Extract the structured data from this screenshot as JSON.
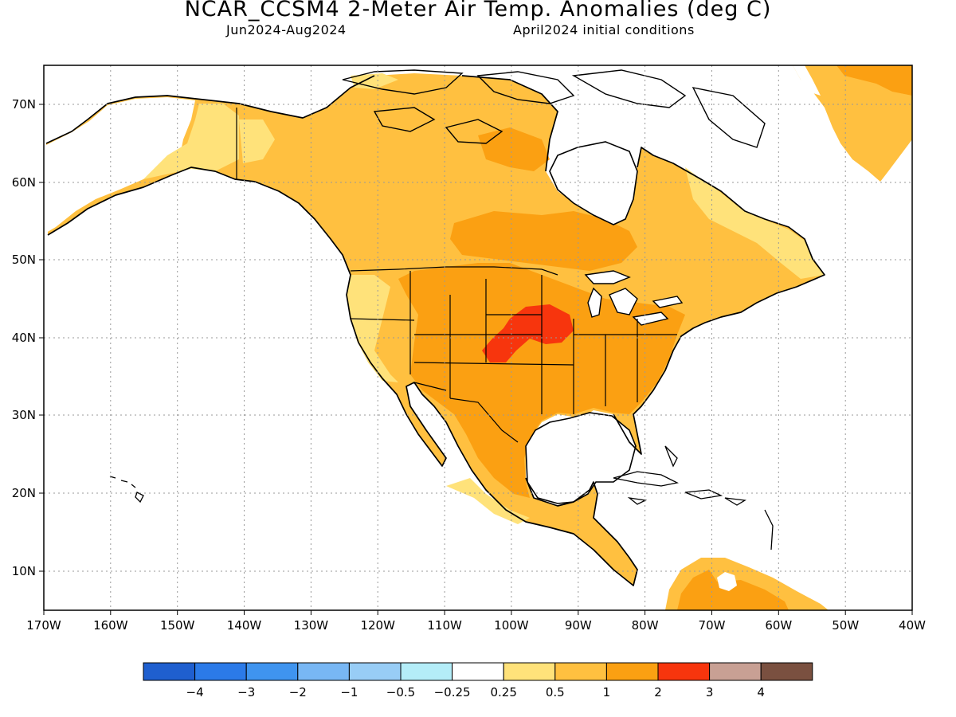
{
  "header": {
    "title": "NCAR_CCSM4 2-Meter Air Temp. Anomalies (deg C)",
    "period": "Jun2024-Aug2024",
    "initial_conditions": "April2024 initial conditions"
  },
  "map": {
    "lon_labels": [
      "170W",
      "160W",
      "150W",
      "140W",
      "130W",
      "120W",
      "110W",
      "100W",
      "90W",
      "80W",
      "70W",
      "60W",
      "50W",
      "40W"
    ],
    "lat_labels": [
      "70N",
      "60N",
      "50N",
      "40N",
      "30N",
      "20N",
      "10N"
    ],
    "lon_range": [
      -170,
      -40
    ],
    "lat_range": [
      5,
      75
    ],
    "grid": "dotted",
    "background": "#ffffff",
    "coastline_color": "#000000"
  },
  "colorbar": {
    "colors": [
      "#1f5fcf",
      "#2b7ae8",
      "#3f94ef",
      "#78b7f4",
      "#98cdf6",
      "#b4edf8",
      "#ffffff",
      "#ffe27a",
      "#ffc040",
      "#fba012",
      "#f7350d",
      "#c8a094",
      "#7a5040"
    ],
    "labels": [
      "−4",
      "−3",
      "−2",
      "−1",
      "−0.5",
      "−0.25",
      "0.25",
      "0.5",
      "1",
      "2",
      "3",
      "4"
    ]
  },
  "anomaly_colors": {
    "above_025": "#ffe27a",
    "above_05": "#ffc040",
    "above_1": "#fba012",
    "above_2": "#f7350d",
    "below_025": "#b4edf8"
  }
}
